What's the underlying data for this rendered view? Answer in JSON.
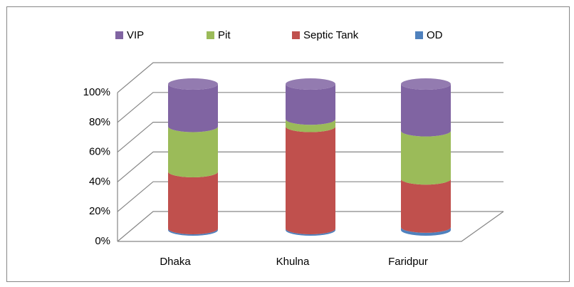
{
  "chart_data": {
    "type": "stacked_cylinder",
    "categories": [
      "Dhaka",
      "Khulna",
      "Faridpur"
    ],
    "series": [
      {
        "name": "VIP",
        "color": "#8064a2",
        "values": [
          29,
          24,
          32
        ]
      },
      {
        "name": "Pit",
        "color": "#9bbb59",
        "values": [
          31,
          5,
          33
        ]
      },
      {
        "name": "Septic Tank",
        "color": "#c0504d",
        "values": [
          39,
          70,
          33
        ]
      },
      {
        "name": "OD",
        "color": "#4f81bd",
        "values": [
          1,
          1,
          2
        ]
      }
    ],
    "ylim": [
      0,
      100
    ],
    "yticks": [
      {
        "value": 0,
        "label": "0%"
      },
      {
        "value": 20,
        "label": "20%"
      },
      {
        "value": 40,
        "label": "40%"
      },
      {
        "value": 60,
        "label": "60%"
      },
      {
        "value": 80,
        "label": "80%"
      },
      {
        "value": 100,
        "label": "100%"
      }
    ],
    "grid": true,
    "legend": "top"
  }
}
